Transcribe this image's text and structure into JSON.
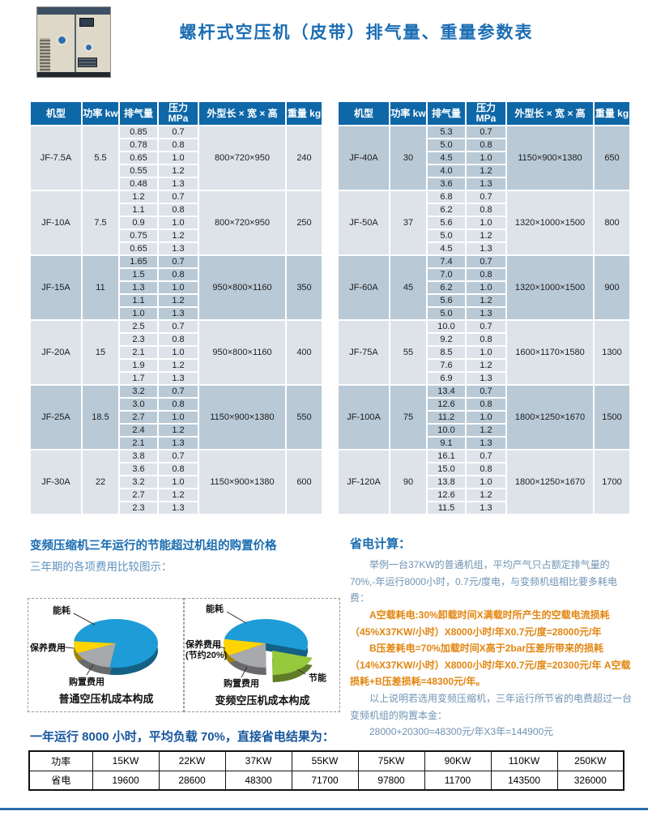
{
  "page": {
    "title": "螺杆式空压机（皮带）排气量、重量参数表"
  },
  "colors": {
    "header_blue": "#0e67a7",
    "band_light": "#dde3e9",
    "band_dark": "#b9c9d6",
    "title_blue": "#1a6db3",
    "orange_text": "#e2850f",
    "footer_rule_blue": "#2b6cad"
  },
  "spec": {
    "headers": [
      "机型",
      "功率 kw",
      "排气量",
      "压力 MPa",
      "外型长 × 宽 × 高",
      "重量 kg"
    ],
    "tables": [
      {
        "groups": [
          {
            "model": "JF-7.5A",
            "power": "5.5",
            "dims": "800×720×950",
            "weight": "240",
            "shade": "light",
            "rows": [
              [
                "0.85",
                "0.7"
              ],
              [
                "0.78",
                "0.8"
              ],
              [
                "0.65",
                "1.0"
              ],
              [
                "0.55",
                "1.2"
              ],
              [
                "0.48",
                "1.3"
              ]
            ]
          },
          {
            "model": "JF-10A",
            "power": "7.5",
            "dims": "800×720×950",
            "weight": "250",
            "shade": "light",
            "rows": [
              [
                "1.2",
                "0.7"
              ],
              [
                "1.1",
                "0.8"
              ],
              [
                "0.9",
                "1.0"
              ],
              [
                "0.75",
                "1.2"
              ],
              [
                "0.65",
                "1.3"
              ]
            ]
          },
          {
            "model": "JF-15A",
            "power": "11",
            "dims": "950×800×1160",
            "weight": "350",
            "shade": "dark",
            "rows": [
              [
                "1.65",
                "0.7"
              ],
              [
                "1.5",
                "0.8"
              ],
              [
                "1.3",
                "1.0"
              ],
              [
                "1.1",
                "1.2"
              ],
              [
                "1.0",
                "1.3"
              ]
            ]
          },
          {
            "model": "JF-20A",
            "power": "15",
            "dims": "950×800×1160",
            "weight": "400",
            "shade": "light",
            "rows": [
              [
                "2.5",
                "0.7"
              ],
              [
                "2.3",
                "0.8"
              ],
              [
                "2.1",
                "1.0"
              ],
              [
                "1.9",
                "1.2"
              ],
              [
                "1.7",
                "1.3"
              ]
            ]
          },
          {
            "model": "JF-25A",
            "power": "18.5",
            "dims": "1150×900×1380",
            "weight": "550",
            "shade": "dark",
            "rows": [
              [
                "3.2",
                "0.7"
              ],
              [
                "3.0",
                "0.8"
              ],
              [
                "2.7",
                "1.0"
              ],
              [
                "2.4",
                "1.2"
              ],
              [
                "2.1",
                "1.3"
              ]
            ]
          },
          {
            "model": "JF-30A",
            "power": "22",
            "dims": "1150×900×1380",
            "weight": "600",
            "shade": "light",
            "rows": [
              [
                "3.8",
                "0.7"
              ],
              [
                "3.6",
                "0.8"
              ],
              [
                "3.2",
                "1.0"
              ],
              [
                "2.7",
                "1.2"
              ],
              [
                "2.3",
                "1.3"
              ]
            ]
          }
        ]
      },
      {
        "groups": [
          {
            "model": "JF-40A",
            "power": "30",
            "dims": "1150×900×1380",
            "weight": "650",
            "shade": "dark",
            "rows": [
              [
                "5.3",
                "0.7"
              ],
              [
                "5.0",
                "0.8"
              ],
              [
                "4.5",
                "1.0"
              ],
              [
                "4.0",
                "1.2"
              ],
              [
                "3.6",
                "1.3"
              ]
            ]
          },
          {
            "model": "JF-50A",
            "power": "37",
            "dims": "1320×1000×1500",
            "weight": "800",
            "shade": "light",
            "rows": [
              [
                "6.8",
                "0.7"
              ],
              [
                "6.2",
                "0.8"
              ],
              [
                "5.6",
                "1.0"
              ],
              [
                "5.0",
                "1.2"
              ],
              [
                "4.5",
                "1.3"
              ]
            ]
          },
          {
            "model": "JF-60A",
            "power": "45",
            "dims": "1320×1000×1500",
            "weight": "900",
            "shade": "dark",
            "rows": [
              [
                "7.4",
                "0.7"
              ],
              [
                "7.0",
                "0.8"
              ],
              [
                "6.2",
                "1.0"
              ],
              [
                "5.6",
                "1.2"
              ],
              [
                "5.0",
                "1.3"
              ]
            ]
          },
          {
            "model": "JF-75A",
            "power": "55",
            "dims": "1600×1170×1580",
            "weight": "1300",
            "shade": "light",
            "rows": [
              [
                "10.0",
                "0.7"
              ],
              [
                "9.2",
                "0.8"
              ],
              [
                "8.5",
                "1.0"
              ],
              [
                "7.6",
                "1.2"
              ],
              [
                "6.9",
                "1.3"
              ]
            ]
          },
          {
            "model": "JF-100A",
            "power": "75",
            "dims": "1800×1250×1670",
            "weight": "1500",
            "shade": "dark",
            "rows": [
              [
                "13.4",
                "0.7"
              ],
              [
                "12.6",
                "0.8"
              ],
              [
                "11.2",
                "1.0"
              ],
              [
                "10.0",
                "1.2"
              ],
              [
                "9.1",
                "1.3"
              ]
            ]
          },
          {
            "model": "JF-120A",
            "power": "90",
            "dims": "1800×1250×1670",
            "weight": "1700",
            "shade": "light",
            "rows": [
              [
                "16.1",
                "0.7"
              ],
              [
                "15.0",
                "0.8"
              ],
              [
                "13.8",
                "1.0"
              ],
              [
                "12.6",
                "1.2"
              ],
              [
                "11.5",
                "1.3"
              ]
            ]
          }
        ]
      }
    ]
  },
  "sections": {
    "compare": {
      "heading": "变频压缩机三年运行的节能超过机组的购置价格",
      "subheading": "三年期的各项费用比较图示："
    },
    "saving": {
      "heading": "省电计算：",
      "p1": "举例一台37KW的普通机组，平均产气只占额定排气量的70%,-年运行8000小时，0.7元/度电，与变频机组相比要多耗电费：",
      "p2": "A空载耗电:30%卸载时间X满载时所产生的空载电流损耗（45%X37KW/小时）X8000小时/年X0.7元/度=28000元/年",
      "p3": "B压差耗电=70%加载时间X高于2bar压差所带来的损耗（14%X37KW/小时）X8000小时/年X0.7元/度=20300元/年 A空载损耗+B压差损耗=48300元/年。",
      "p4": "以上说明若选用变频压缩机，三年运行所节省的电费超过一台变频机组的购置本金：",
      "p5": "28000+20300=48300元/年X3年=144900元"
    }
  },
  "chart_data": [
    {
      "type": "pie",
      "title": "普通空压机成本构成",
      "legend_position": "callout-labels",
      "slices": [
        {
          "label": "能耗",
          "value": 76,
          "color": "#1e9cd7"
        },
        {
          "label": "购置费用",
          "value": 16,
          "color": "#a7a9ac"
        },
        {
          "label": "保养费用",
          "value": 8,
          "color": "#ffd400"
        }
      ]
    },
    {
      "type": "pie",
      "title": "变频空压机成本构成",
      "legend_position": "callout-labels",
      "slices": [
        {
          "label": "能耗",
          "value": 52,
          "color": "#1e9cd7"
        },
        {
          "label": "节能",
          "value": 20,
          "color": "#97c93d"
        },
        {
          "label": "购置费用",
          "value": 17,
          "color": "#a7a9ac"
        },
        {
          "label": "保养费用",
          "note": "(节约20%)",
          "value": 11,
          "color": "#ffd400"
        }
      ]
    }
  ],
  "bottom": {
    "title": "一年运行 8000 小时，平均负载 70%，直接省电结果为：",
    "table": {
      "rows": [
        [
          "功率",
          "15KW",
          "22KW",
          "37KW",
          "55KW",
          "75KW",
          "90KW",
          "110KW",
          "250KW"
        ],
        [
          "省电",
          "19600",
          "28600",
          "48300",
          "71700",
          "97800",
          "11700",
          "143500",
          "326000"
        ]
      ]
    }
  }
}
